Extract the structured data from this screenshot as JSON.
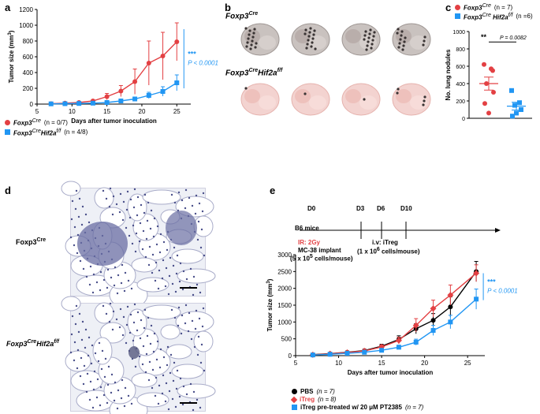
{
  "panels": {
    "a": {
      "label": "a",
      "series_names": [
        "Foxp3",
        "Foxp3",
        "Hif2a"
      ],
      "legend": [
        {
          "gene": "Foxp3",
          "sup": "Cre",
          "sup2": "",
          "gene2": "",
          "stat": "(n = 0/7)",
          "color": "#e34043",
          "marker": "circle"
        },
        {
          "gene": "Foxp3",
          "sup": "Cre",
          "gene2": "Hif2a",
          "sup2": "f/f",
          "stat": "(n = 4/8)",
          "color": "#2196f3",
          "marker": "square"
        }
      ],
      "sig": {
        "stars": "***",
        "p": "P < 0.0001"
      }
    },
    "b": {
      "label": "b",
      "row1": {
        "gene": "Foxp3",
        "sup": "Cre"
      },
      "row2": {
        "gene": "Foxp3",
        "sup": "Cre",
        "gene2": "Hif2a",
        "sup2": "f/f"
      }
    },
    "c": {
      "label": "c",
      "legend": [
        {
          "gene": "Foxp3",
          "sup": "Cre",
          "gene2": "",
          "sup2": "",
          "stat": "(n = 7)",
          "color": "#e34043",
          "marker": "circle"
        },
        {
          "gene": "Foxp3",
          "sup": "Cre",
          "gene2": "Hif2a",
          "sup2": "f/f",
          "stat": "(n =6)",
          "color": "#2196f3",
          "marker": "square"
        }
      ],
      "sig": {
        "stars": "**",
        "p": "P = 0.0082"
      }
    },
    "d": {
      "label": "d",
      "row1": {
        "gene": "Foxp3",
        "sup": "Cre"
      },
      "row2": {
        "gene": "Foxp3",
        "sup": "Cre",
        "gene2": "Hif2a",
        "sup2": "f/f"
      }
    },
    "e": {
      "label": "e",
      "timeline": {
        "days": [
          "D0",
          "D3",
          "D6",
          "D10"
        ],
        "mice": "B6 mice",
        "ir": "IR: 2Gy",
        "implant": "MC-38 implant",
        "implant_dose": "(5 x 10",
        "implant_exp": "5",
        "implant_unit": " cells/mouse)",
        "treg": "i.v: iTreg",
        "treg_dose": "(1 x 10",
        "treg_exp": "6",
        "treg_unit": " cells/mouse)"
      },
      "legend": [
        {
          "text": "PBS",
          "stat": "(n = 7)",
          "color": "#000000",
          "marker": "circle"
        },
        {
          "text": "iTreg",
          "stat": "(n = 8)",
          "color": "#e34043",
          "marker": "diamond"
        },
        {
          "text": "iTreg pre-treated w/ 20 μM PT2385",
          "stat": "(n = 7)",
          "color": "#2196f3",
          "marker": "square"
        }
      ],
      "sig": {
        "stars": "***",
        "p": "P < 0.0001"
      }
    }
  },
  "chart_data": [
    {
      "id": "a",
      "type": "line",
      "xlabel": "Days after tumor inoculation",
      "ylabel": "Tumor size (mm",
      "ylabel_sup": "3",
      "ylabel_end": ")",
      "xlim": [
        5,
        27
      ],
      "ylim": [
        0,
        1200
      ],
      "xticks": [
        5,
        10,
        15,
        20,
        25
      ],
      "yticks": [
        0,
        200,
        400,
        600,
        800,
        1000,
        1200
      ],
      "x": [
        7,
        9,
        11,
        13,
        15,
        17,
        19,
        21,
        23,
        25
      ],
      "series": [
        {
          "name": "Foxp3 Cre",
          "color": "#e34043",
          "marker": "circle",
          "values": [
            5,
            12,
            20,
            40,
            95,
            165,
            285,
            520,
            610,
            790
          ],
          "err": [
            3,
            5,
            8,
            15,
            40,
            70,
            160,
            280,
            300,
            240
          ]
        },
        {
          "name": "Foxp3 Cre Hif2a f/f",
          "color": "#2196f3",
          "marker": "square",
          "values": [
            3,
            5,
            8,
            12,
            20,
            40,
            65,
            110,
            160,
            270
          ],
          "err": [
            2,
            3,
            4,
            6,
            10,
            15,
            25,
            40,
            60,
            100
          ]
        }
      ]
    },
    {
      "id": "c",
      "type": "scatter",
      "ylabel": "No. lung nodules",
      "ylim": [
        0,
        1000
      ],
      "yticks": [
        0,
        200,
        400,
        600,
        800,
        1000
      ],
      "groups": [
        {
          "name": "Foxp3 Cre",
          "color": "#e34043",
          "marker": "circle",
          "points": [
            620,
            550,
            400,
            300,
            170,
            60,
            570
          ],
          "mean": 400,
          "sem": 75
        },
        {
          "name": "Foxp3 Cre Hif2a f/f",
          "color": "#2196f3",
          "marker": "square",
          "points": [
            320,
            180,
            150,
            100,
            60,
            25
          ],
          "mean": 140,
          "sem": 45
        }
      ]
    },
    {
      "id": "e",
      "type": "line",
      "xlabel": "Days after tumor inoculation",
      "ylabel": "Tumor size (mm",
      "ylabel_sup": "3",
      "ylabel_end": ")",
      "xlim": [
        5,
        27
      ],
      "ylim": [
        0,
        3000
      ],
      "xticks": [
        5,
        10,
        15,
        20,
        25
      ],
      "yticks": [
        0,
        500,
        1000,
        1500,
        2000,
        2500,
        3000
      ],
      "x": [
        7,
        9,
        11,
        13,
        15,
        17,
        19,
        21,
        23,
        26
      ],
      "series": [
        {
          "name": "PBS",
          "color": "#000000",
          "marker": "circle",
          "values": [
            30,
            60,
            100,
            150,
            280,
            480,
            800,
            1050,
            1450,
            2500
          ],
          "err": [
            10,
            15,
            25,
            40,
            60,
            110,
            150,
            200,
            300,
            300
          ]
        },
        {
          "name": "iTreg",
          "color": "#e34043",
          "marker": "diamond",
          "values": [
            25,
            55,
            95,
            140,
            260,
            450,
            900,
            1400,
            1800,
            2450
          ],
          "err": [
            10,
            15,
            25,
            40,
            60,
            100,
            200,
            250,
            300,
            250
          ]
        },
        {
          "name": "iTreg pre-treated",
          "color": "#2196f3",
          "marker": "square",
          "values": [
            20,
            40,
            70,
            100,
            160,
            250,
            400,
            750,
            1000,
            1680
          ],
          "err": [
            8,
            10,
            15,
            25,
            40,
            60,
            90,
            150,
            200,
            300
          ]
        }
      ]
    }
  ]
}
